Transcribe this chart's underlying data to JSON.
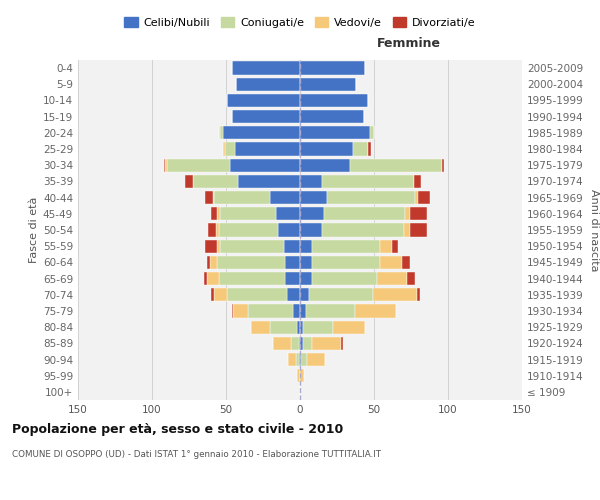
{
  "age_groups": [
    "100+",
    "95-99",
    "90-94",
    "85-89",
    "80-84",
    "75-79",
    "70-74",
    "65-69",
    "60-64",
    "55-59",
    "50-54",
    "45-49",
    "40-44",
    "35-39",
    "30-34",
    "25-29",
    "20-24",
    "15-19",
    "10-14",
    "5-9",
    "0-4"
  ],
  "birth_years": [
    "≤ 1909",
    "1910-1914",
    "1915-1919",
    "1920-1924",
    "1925-1929",
    "1930-1934",
    "1935-1939",
    "1940-1944",
    "1945-1949",
    "1950-1954",
    "1955-1959",
    "1960-1964",
    "1965-1969",
    "1970-1974",
    "1975-1979",
    "1980-1984",
    "1985-1989",
    "1990-1994",
    "1995-1999",
    "2000-2004",
    "2005-2009"
  ],
  "male": {
    "celibi": [
      0,
      0,
      1,
      1,
      2,
      5,
      9,
      10,
      10,
      11,
      15,
      16,
      20,
      42,
      47,
      44,
      52,
      46,
      49,
      43,
      46
    ],
    "coniugati": [
      0,
      0,
      2,
      5,
      18,
      30,
      40,
      45,
      46,
      43,
      40,
      38,
      38,
      30,
      43,
      7,
      2,
      0,
      0,
      0,
      0
    ],
    "vedovi": [
      0,
      2,
      5,
      12,
      13,
      10,
      9,
      8,
      5,
      2,
      2,
      2,
      1,
      0,
      1,
      1,
      1,
      0,
      0,
      0,
      0
    ],
    "divorziati": [
      0,
      0,
      0,
      0,
      0,
      1,
      2,
      2,
      2,
      8,
      5,
      4,
      5,
      6,
      1,
      0,
      0,
      0,
      0,
      0,
      0
    ]
  },
  "female": {
    "nubili": [
      0,
      0,
      1,
      2,
      2,
      4,
      6,
      8,
      8,
      8,
      15,
      16,
      18,
      15,
      34,
      36,
      47,
      43,
      46,
      38,
      44
    ],
    "coniugate": [
      0,
      0,
      4,
      6,
      20,
      33,
      43,
      44,
      46,
      46,
      55,
      55,
      60,
      62,
      62,
      10,
      3,
      0,
      0,
      0,
      0
    ],
    "vedove": [
      0,
      3,
      12,
      20,
      22,
      28,
      30,
      20,
      15,
      8,
      4,
      3,
      2,
      0,
      0,
      0,
      0,
      0,
      0,
      0,
      0
    ],
    "divorziate": [
      0,
      0,
      0,
      1,
      0,
      0,
      2,
      6,
      5,
      4,
      12,
      12,
      8,
      5,
      1,
      2,
      0,
      0,
      0,
      0,
      0
    ]
  },
  "colors": {
    "celibi": "#4472C4",
    "coniugati": "#C5D9A0",
    "vedovi": "#F5C87A",
    "divorziati": "#C0392B"
  },
  "xlim": 150,
  "title": "Popolazione per età, sesso e stato civile - 2010",
  "subtitle": "COMUNE DI OSOPPO (UD) - Dati ISTAT 1° gennaio 2010 - Elaborazione TUTTITALIA.IT",
  "ylabel_left": "Fasce di età",
  "ylabel_right": "Anni di nascita",
  "xlabel_right": "Femmine",
  "legend_labels": [
    "Celibi/Nubili",
    "Coniugati/e",
    "Vedovi/e",
    "Divorziati/e"
  ],
  "bg_color": "#F2F2F2"
}
